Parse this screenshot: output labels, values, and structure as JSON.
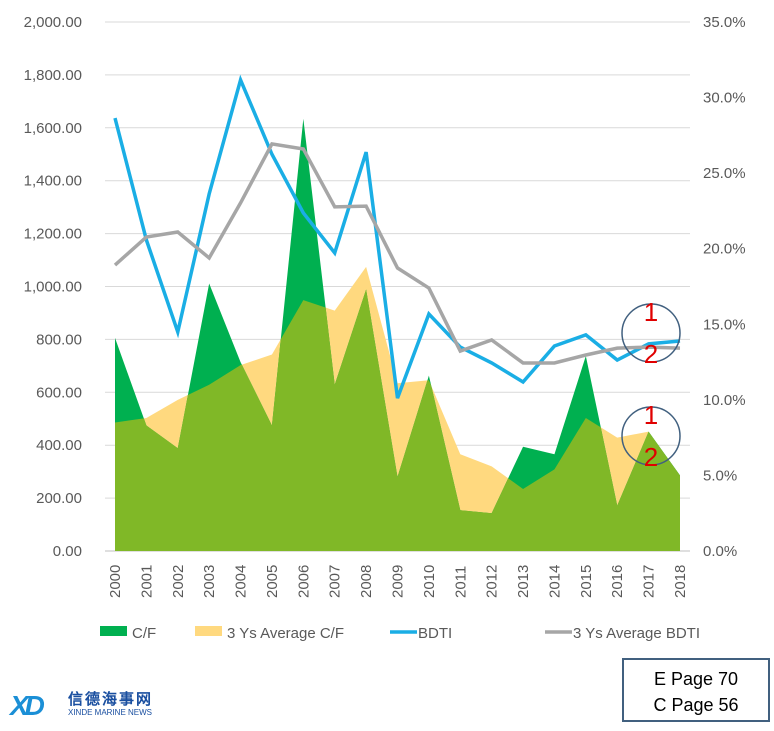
{
  "chart_data": {
    "type": "area+line",
    "categories": [
      "2000",
      "2001",
      "2002",
      "2003",
      "2004",
      "2005",
      "2006",
      "2007",
      "2008",
      "2009",
      "2010",
      "2011",
      "2012",
      "2013",
      "2014",
      "2015",
      "2016",
      "2017",
      "2018"
    ],
    "left_axis": {
      "ylim": [
        0,
        2000
      ],
      "ticks": [
        "0.00",
        "200.00",
        "400.00",
        "600.00",
        "800.00",
        "1,000.00",
        "1,200.00",
        "1,400.00",
        "1,600.00",
        "1,800.00",
        "2,000.00"
      ]
    },
    "right_axis": {
      "ylim": [
        0,
        35
      ],
      "ticks": [
        "0.0%",
        "5.0%",
        "10.0%",
        "15.0%",
        "20.0%",
        "25.0%",
        "30.0%",
        "35.0%"
      ]
    },
    "grid": true,
    "legend_position": "bottom",
    "series": [
      {
        "name": "C/F",
        "type": "area",
        "axis": "right",
        "color": "#00b050",
        "values": [
          14.1,
          8.3,
          6.8,
          17.7,
          12.5,
          8.3,
          28.6,
          11.0,
          17.3,
          4.9,
          11.6,
          2.7,
          2.5,
          6.9,
          6.4,
          12.9,
          3.0,
          7.9,
          5.0
        ]
      },
      {
        "name": "3 Ys Average C/F",
        "type": "area",
        "axis": "right",
        "color": "#ffd97f",
        "values": [
          8.5,
          8.8,
          10.0,
          11.0,
          12.3,
          13.0,
          16.6,
          15.9,
          18.8,
          11.1,
          11.3,
          6.4,
          5.6,
          4.1,
          5.4,
          8.8,
          7.5,
          7.9,
          5.0
        ]
      },
      {
        "name": "BDTI",
        "type": "line",
        "axis": "left",
        "color": "#1aaee5",
        "values": [
          1637,
          1176,
          828,
          1350,
          1781,
          1500,
          1278,
          1127,
          1508,
          578,
          896,
          771,
          711,
          639,
          775,
          817,
          722,
          783,
          794
        ]
      },
      {
        "name": "3 Ys Average BDTI",
        "type": "line",
        "axis": "left",
        "color": "#a6a6a6",
        "values": [
          1081,
          1187,
          1206,
          1108,
          1316,
          1539,
          1520,
          1301,
          1304,
          1070,
          994,
          756,
          798,
          711,
          711,
          741,
          767,
          771,
          767
        ]
      }
    ],
    "overlap_color": "#80b827",
    "annotations": [
      {
        "top": "1",
        "bottom": "2"
      },
      {
        "top": "1",
        "bottom": "2"
      }
    ]
  },
  "page_ref": {
    "e": "E Page 70",
    "c": "C Page 56"
  },
  "logo": {
    "cn": "信德海事网",
    "en": "XINDE MARINE NEWS",
    "mark": "XD"
  }
}
